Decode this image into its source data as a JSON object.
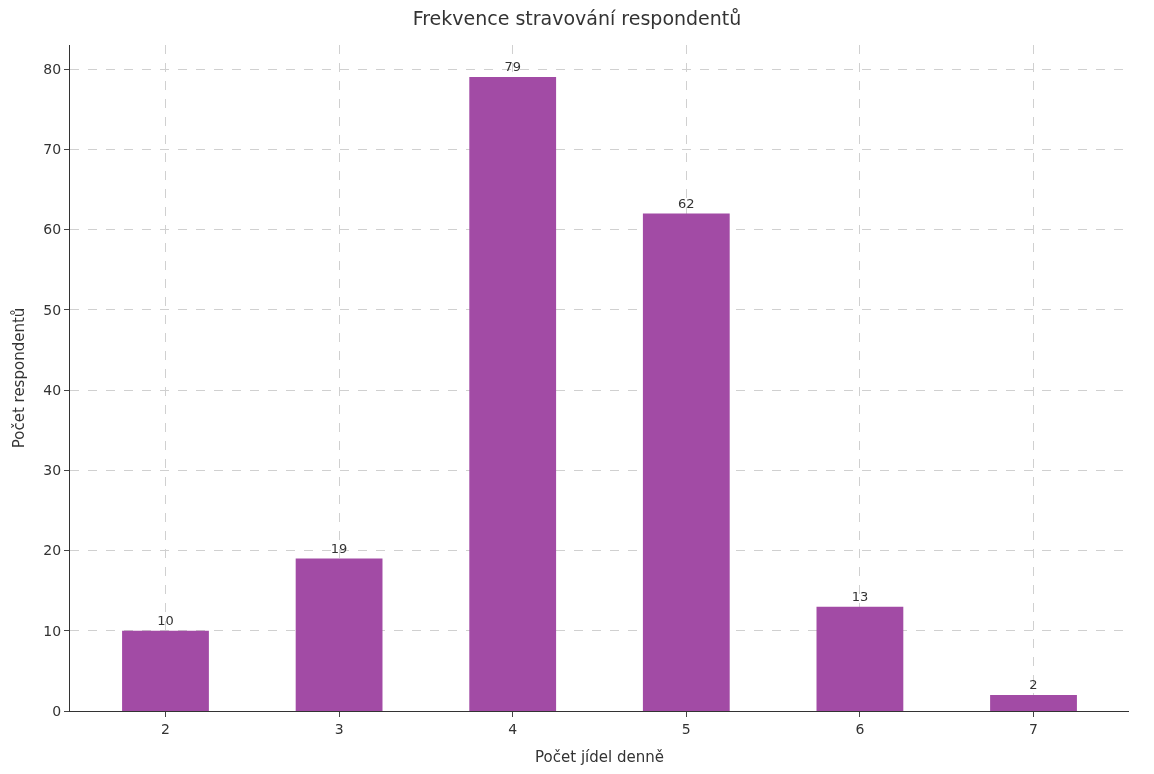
{
  "chart_data": {
    "type": "bar",
    "title": "Frekvence stravování respondentů",
    "xlabel": "Počet jídel denně",
    "ylabel": "Počet respondentů",
    "categories": [
      "2",
      "3",
      "4",
      "5",
      "6",
      "7"
    ],
    "values": [
      10,
      19,
      79,
      62,
      13,
      2
    ],
    "color": "#a24ba5",
    "ylim": [
      0,
      83
    ],
    "yticks": [
      0,
      10,
      20,
      30,
      40,
      50,
      60,
      70,
      80
    ],
    "grid": true,
    "data_labels": true
  }
}
